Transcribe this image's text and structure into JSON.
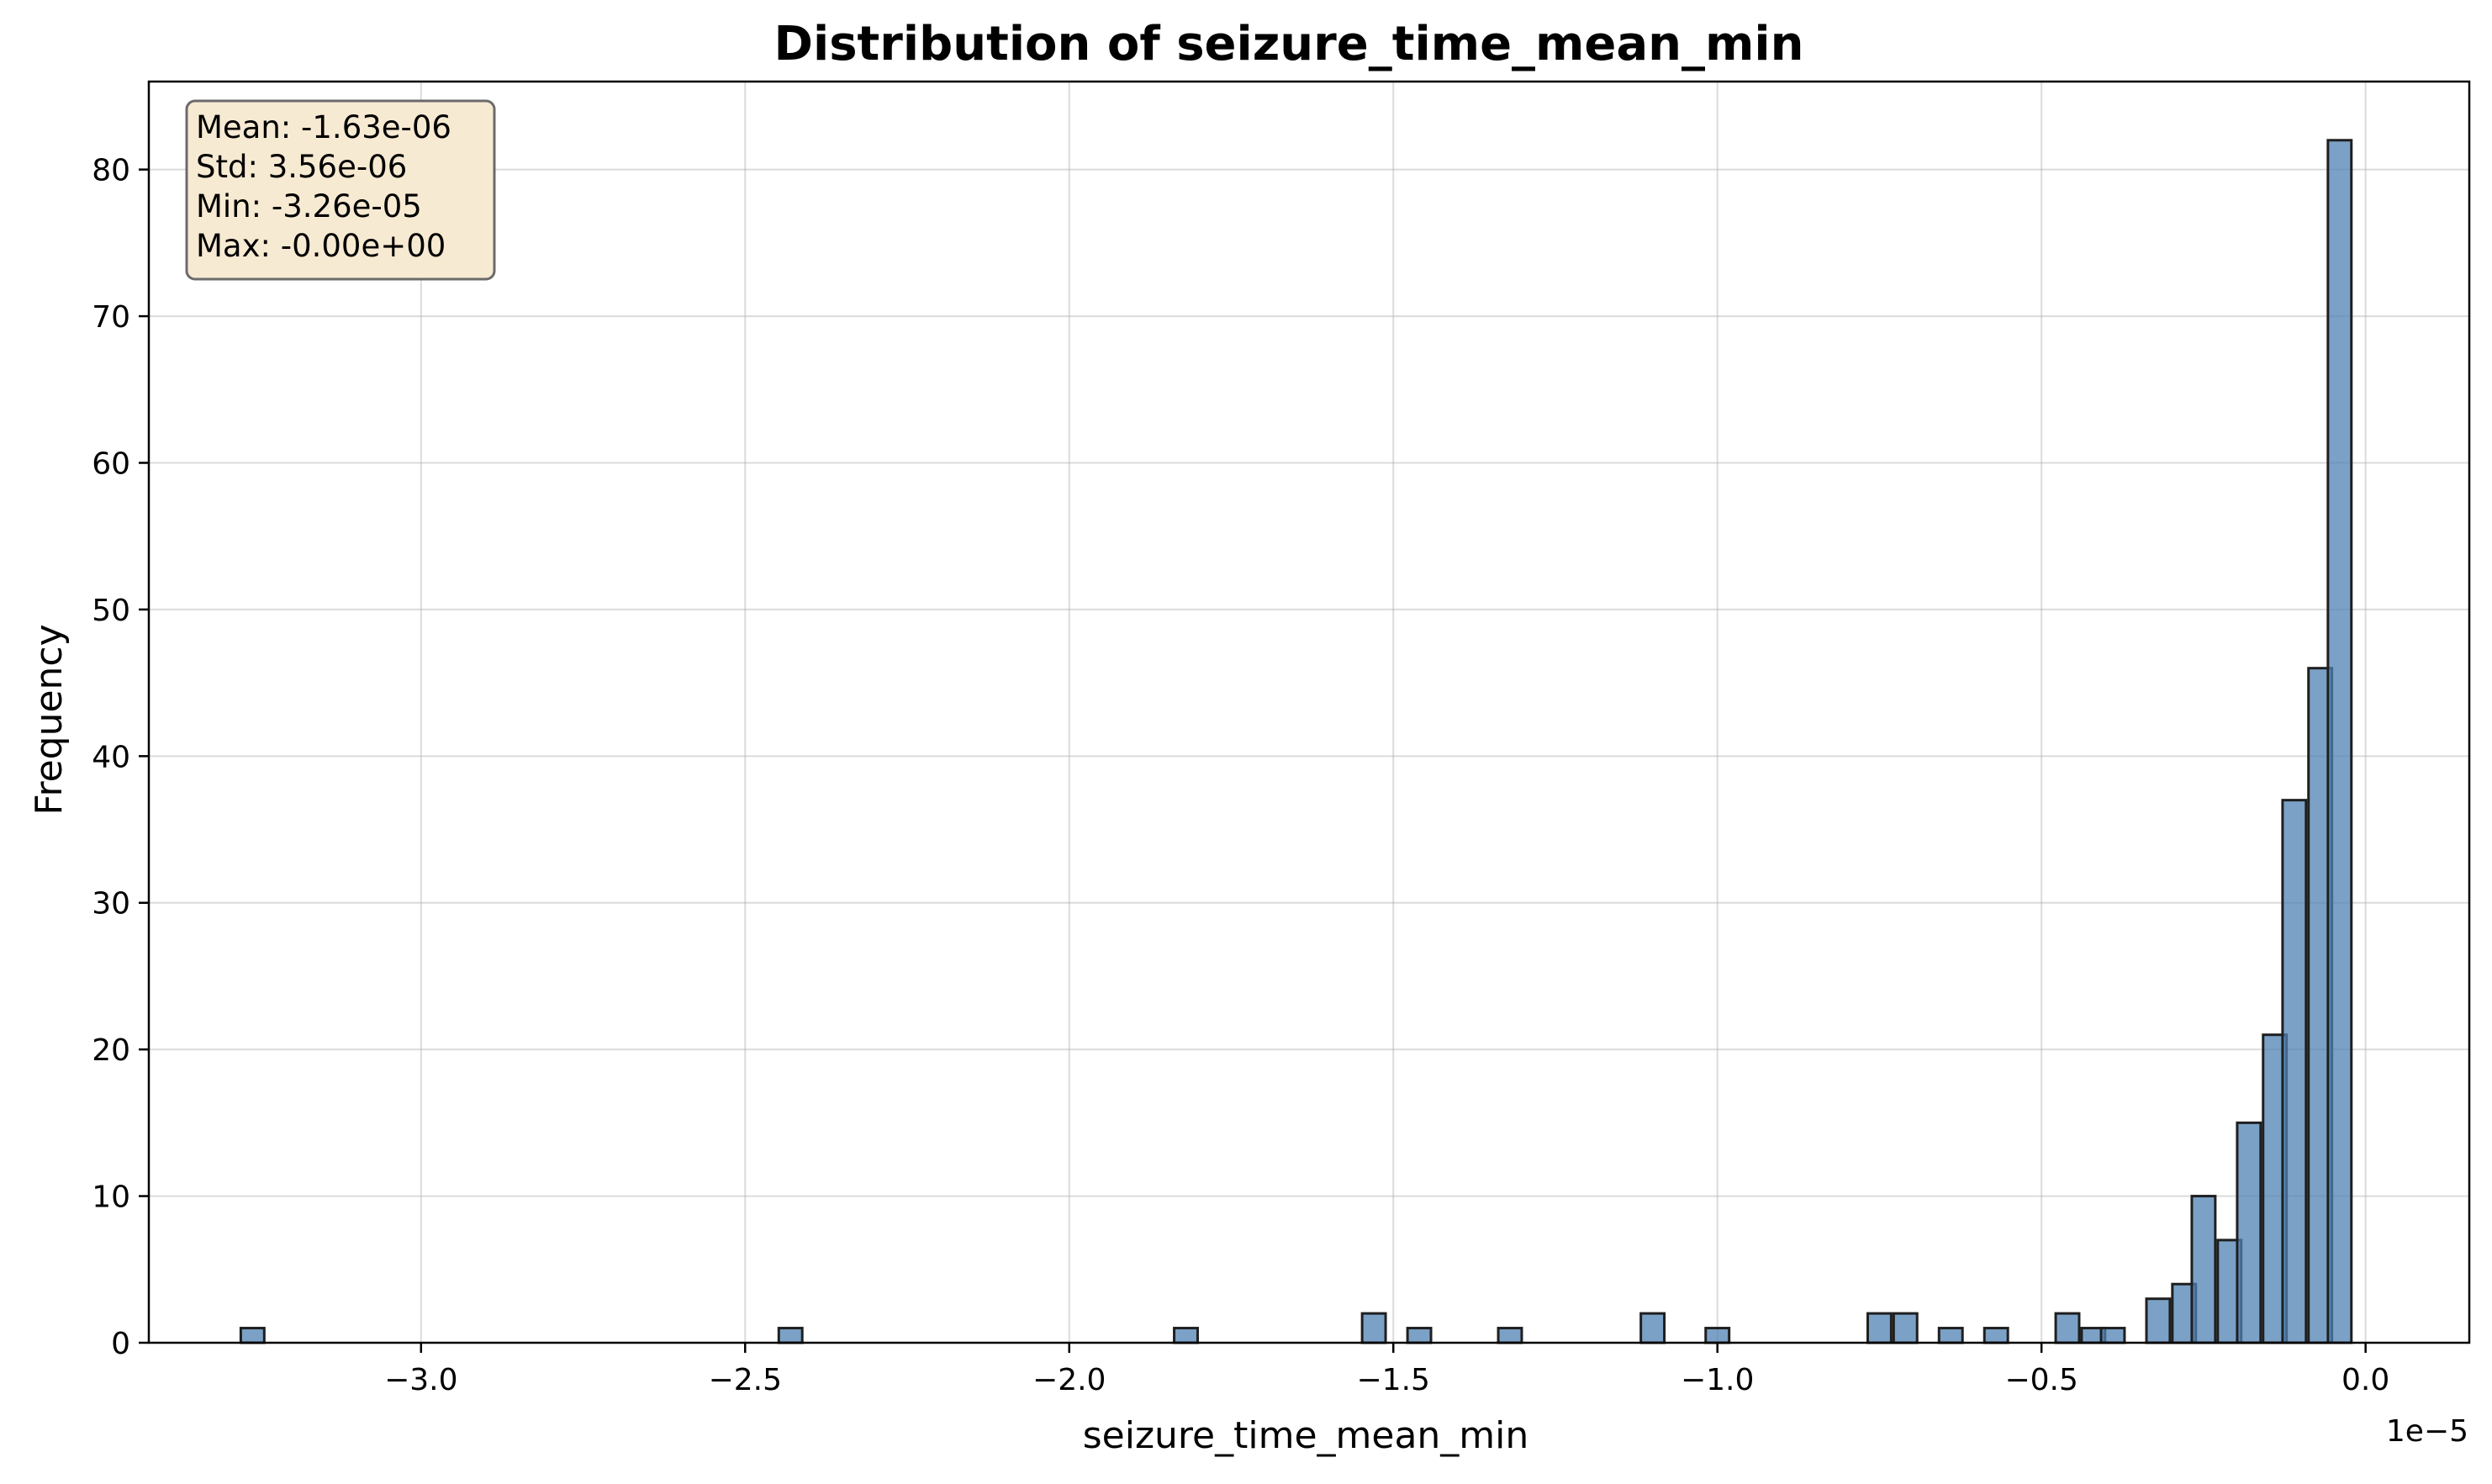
{
  "chart_data": {
    "type": "bar",
    "title": "Distribution of seizure_time_mean_min",
    "xlabel": "seizure_time_mean_min",
    "ylabel": "Frequency",
    "x_offset_label": "1e−5",
    "xlim": [
      -3.42,
      0.16
    ],
    "ylim": [
      0,
      86
    ],
    "grid": true,
    "bar_color": "#4f81b4",
    "bar_edge_color": "#1f1f1f",
    "x_ticks": [
      -3.0,
      -2.5,
      -2.0,
      -1.5,
      -1.0,
      -0.5,
      0.0
    ],
    "x_tick_labels": [
      "−3.0",
      "−2.5",
      "−2.0",
      "−1.5",
      "−1.0",
      "−0.5",
      "0.0"
    ],
    "y_ticks": [
      0,
      10,
      20,
      30,
      40,
      50,
      60,
      70,
      80
    ],
    "y_tick_labels": [
      "0",
      "10",
      "20",
      "30",
      "40",
      "50",
      "60",
      "70",
      "80"
    ],
    "bin_width": 0.0362,
    "bins": [
      {
        "x": -3.26,
        "count": 1
      },
      {
        "x": -2.43,
        "count": 1
      },
      {
        "x": -1.82,
        "count": 1
      },
      {
        "x": -1.53,
        "count": 2
      },
      {
        "x": -1.46,
        "count": 1
      },
      {
        "x": -1.32,
        "count": 1
      },
      {
        "x": -1.1,
        "count": 2
      },
      {
        "x": -1.0,
        "count": 1
      },
      {
        "x": -0.75,
        "count": 2
      },
      {
        "x": -0.71,
        "count": 2
      },
      {
        "x": -0.64,
        "count": 1
      },
      {
        "x": -0.57,
        "count": 1
      },
      {
        "x": -0.46,
        "count": 2
      },
      {
        "x": -0.42,
        "count": 1
      },
      {
        "x": -0.39,
        "count": 1
      },
      {
        "x": -0.32,
        "count": 3
      },
      {
        "x": -0.28,
        "count": 4
      },
      {
        "x": -0.25,
        "count": 10
      },
      {
        "x": -0.21,
        "count": 7
      },
      {
        "x": -0.18,
        "count": 15
      },
      {
        "x": -0.14,
        "count": 21
      },
      {
        "x": -0.11,
        "count": 37
      },
      {
        "x": -0.07,
        "count": 46
      },
      {
        "x": -0.04,
        "count": 82
      }
    ],
    "stats_box": {
      "lines": [
        "Mean: -1.63e-06",
        "Std: 3.56e-06",
        "Min: -3.26e-05",
        "Max: -0.00e+00"
      ],
      "location": "top-left",
      "background": "#f7ead2",
      "border": "#6b6b6b"
    }
  }
}
